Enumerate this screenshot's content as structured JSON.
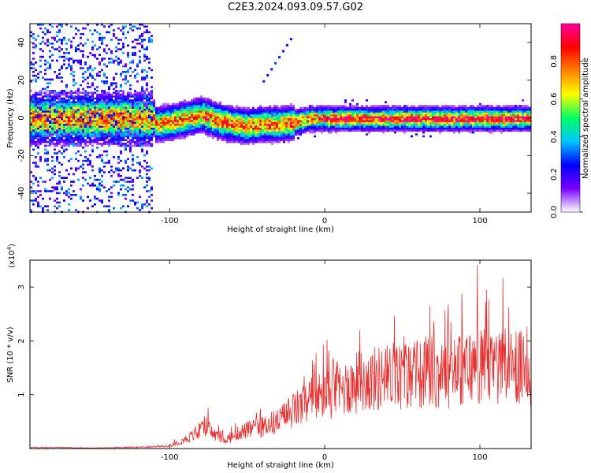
{
  "figure": {
    "title": "C2E3.2024.093.09.57.G02"
  },
  "chart_data": [
    {
      "type": "heatmap",
      "name": "spectrogram",
      "xlabel": "Height of straight line (km)",
      "ylabel": "Frequency (Hz)",
      "xlim": [
        -190,
        133
      ],
      "ylim": [
        -50,
        50
      ],
      "x_ticks": [
        -100,
        0,
        100
      ],
      "x_tick_labels": [
        "-100",
        "0",
        "100"
      ],
      "y_ticks": [
        -40,
        -20,
        0,
        20,
        40
      ],
      "y_tick_labels": [
        "-40",
        "-20",
        "0",
        "20",
        "40"
      ],
      "colorbar": {
        "label": "Normalized spectral amplitude",
        "range": [
          0.0,
          1.0
        ],
        "ticks": [
          0.0,
          0.2,
          0.4,
          0.6,
          0.8
        ],
        "tick_labels": [
          "0.0",
          "0.2",
          "0.4",
          "0.6",
          "0.8"
        ],
        "colormap": [
          "#ffffff",
          "#7a00ff",
          "#0000ff",
          "#00c8ff",
          "#00ff60",
          "#ffff00",
          "#ff8000",
          "#ff0000",
          "#ff00a0"
        ]
      },
      "dominant_frequency_track": {
        "x": [
          -110,
          -100,
          -90,
          -80,
          -70,
          -60,
          -50,
          -40,
          -30,
          -20,
          -10,
          0,
          20,
          40,
          60,
          80,
          100,
          120,
          133
        ],
        "y": [
          -3,
          -2,
          0,
          2,
          -1,
          -3,
          -4,
          -3,
          -3,
          -2,
          0,
          0,
          0,
          0,
          0,
          0,
          0,
          0,
          0
        ]
      },
      "grid": false
    },
    {
      "type": "line",
      "name": "snr",
      "xlabel": "Height of straight line (km)",
      "ylabel": "SNR (10 * v/v)",
      "y_multiplier": "(x10",
      "y_multiplier_exp": "4",
      "y_multiplier_close": ")",
      "xlim": [
        -190,
        133
      ],
      "ylim": [
        0,
        3.5
      ],
      "x_ticks": [
        -100,
        0,
        100
      ],
      "x_tick_labels": [
        "-100",
        "0",
        "100"
      ],
      "y_ticks": [
        1,
        2,
        3
      ],
      "y_tick_labels": [
        "1",
        "2",
        "3"
      ],
      "color": "#e83030",
      "series": [
        {
          "x": [
            -190,
            -170,
            -150,
            -130,
            -110,
            -100,
            -90,
            -85,
            -80,
            -77,
            -72,
            -65,
            -60,
            -55,
            -50,
            -45,
            -40,
            -35,
            -30,
            -25,
            -20,
            -15,
            -10,
            -5,
            0,
            10,
            20,
            30,
            40,
            50,
            60,
            70,
            80,
            90,
            100,
            110,
            120,
            133
          ],
          "y": [
            0.02,
            0.02,
            0.01,
            0.02,
            0.03,
            0.08,
            0.25,
            0.35,
            0.45,
            0.65,
            0.4,
            0.25,
            0.3,
            0.45,
            0.5,
            0.55,
            0.6,
            0.7,
            0.75,
            0.9,
            1.05,
            1.15,
            1.3,
            1.4,
            1.5,
            1.6,
            1.8,
            1.9,
            1.95,
            2.0,
            2.0,
            2.1,
            2.1,
            2.2,
            2.3,
            2.2,
            2.2,
            2.2
          ]
        }
      ],
      "grid": false
    }
  ]
}
